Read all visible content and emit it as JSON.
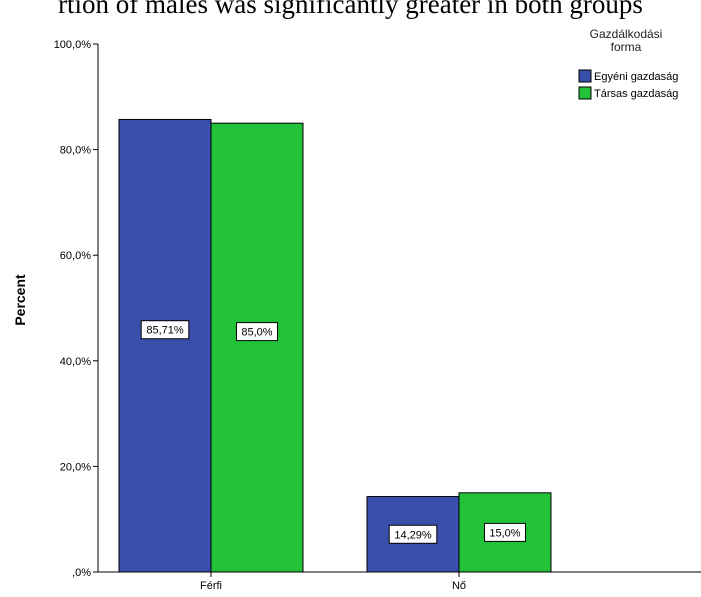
{
  "caption": "rtion of males was significantly greater in both groups",
  "chart_data": {
    "type": "bar",
    "categories": [
      "Férfi",
      "Nő"
    ],
    "series": [
      {
        "name": "Egyéni gazdaság",
        "values": [
          85.71,
          14.29
        ],
        "labels": [
          "85,71%",
          "14,29%"
        ],
        "color": "#3a4fab"
      },
      {
        "name": "Társas gazdaság",
        "values": [
          85.0,
          15.0
        ],
        "labels": [
          "85,0%",
          "15,0%"
        ],
        "color": "#22c23a"
      }
    ],
    "ylabel": "Percent",
    "ylim": [
      0,
      100
    ],
    "yticks": [
      0,
      20,
      40,
      60,
      80,
      100
    ],
    "ytick_labels": [
      ",0%",
      "20,0%",
      "40,0%",
      "60,0%",
      "80,0%",
      "100,0%"
    ],
    "legend_title": "Gazdálkodási forma",
    "legend_title_lines": [
      "Gazdálkodási",
      "forma"
    ],
    "legend_position": "top-right",
    "grid": false
  }
}
